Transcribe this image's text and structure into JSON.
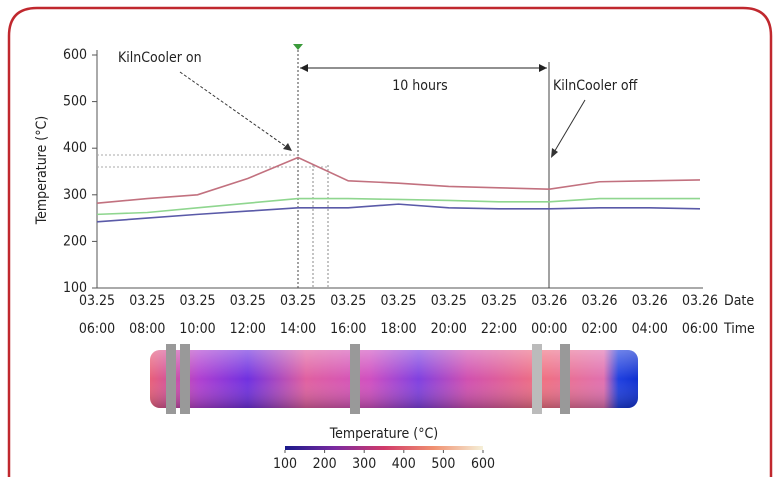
{
  "chart_data": {
    "type": "line",
    "ylabel": "Temperature (°C)",
    "x_label_date": "Date",
    "x_label_time": "Time",
    "categories": [
      {
        "date": "03.25",
        "time": "06:00"
      },
      {
        "date": "03.25",
        "time": "08:00"
      },
      {
        "date": "03.25",
        "time": "10:00"
      },
      {
        "date": "03.25",
        "time": "12:00"
      },
      {
        "date": "03.25",
        "time": "14:00"
      },
      {
        "date": "03.25",
        "time": "16:00"
      },
      {
        "date": "03.25",
        "time": "18:00"
      },
      {
        "date": "03.25",
        "time": "20:00"
      },
      {
        "date": "03.25",
        "time": "22:00"
      },
      {
        "date": "03.26",
        "time": "00:00"
      },
      {
        "date": "03.26",
        "time": "02:00"
      },
      {
        "date": "03.26",
        "time": "04:00"
      },
      {
        "date": "03.26",
        "time": "06:00"
      }
    ],
    "series": [
      {
        "color": "#c2717f",
        "values": [
          282,
          292,
          300,
          335,
          380,
          330,
          325,
          318,
          315,
          312,
          328,
          330,
          332
        ]
      },
      {
        "color": "#8fd68f",
        "values": [
          258,
          262,
          272,
          282,
          292,
          292,
          290,
          288,
          285,
          285,
          292,
          292,
          292
        ]
      },
      {
        "color": "#5a5aa8",
        "values": [
          242,
          250,
          258,
          265,
          272,
          272,
          280,
          272,
          270,
          270,
          272,
          272,
          270
        ]
      }
    ],
    "ylim": [
      100,
      600
    ],
    "yticks": [
      100,
      200,
      300,
      400,
      500,
      600
    ],
    "annotations": {
      "on": "KilnCooler on",
      "off": "KilnCooler off",
      "duration": "10 hours"
    },
    "colorbar": {
      "label": "Temperature (°C)",
      "lim": [
        100,
        600
      ],
      "ticks": [
        100,
        200,
        300,
        400,
        500,
        600
      ]
    }
  }
}
